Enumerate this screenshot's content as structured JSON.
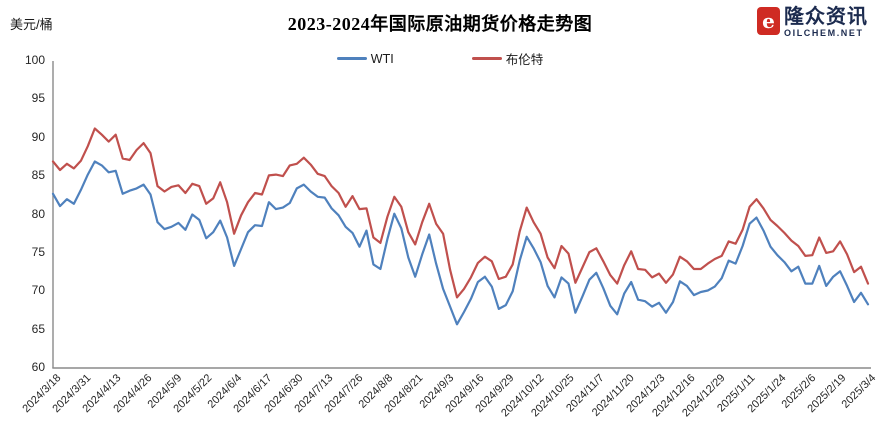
{
  "header": {
    "title": "2023-2024年国际原油期货价格走势图",
    "unit_label": "美元/桶"
  },
  "logo": {
    "brand": "隆众资讯",
    "domain": "OILCHEM.NET",
    "icon_text": "e",
    "icon_color": "#cf2b23",
    "text_color": "#1c2b4f"
  },
  "chart_data": {
    "type": "line",
    "title": "2023-2024年国际原油期货价格走势图",
    "xlabel": "",
    "ylabel": "美元/桶",
    "ylim": [
      60,
      100
    ],
    "y_ticks": [
      100,
      95,
      90,
      85,
      80,
      75,
      70,
      65,
      60
    ],
    "grid": false,
    "legend_position": "top-center",
    "axis_color": "#8a8a8a",
    "x_tick_labels": [
      "2024/3/18",
      "2024/3/31",
      "2024/4/13",
      "2024/4/26",
      "2024/5/9",
      "2024/5/22",
      "2024/6/4",
      "2024/6/17",
      "2024/6/30",
      "2024/7/13",
      "2024/7/26",
      "2024/8/8",
      "2024/8/21",
      "2024/9/3",
      "2024/9/16",
      "2024/9/29",
      "2024/10/12",
      "2024/10/25",
      "2024/11/7",
      "2024/11/20",
      "2024/12/3",
      "2024/12/16",
      "2024/12/29",
      "2025/1/11",
      "2025/1/24",
      "2025/2/6",
      "2025/2/19",
      "2025/3/4"
    ],
    "x_note": "values sampled every 3 days from 2024/3/18 to 2025/3/4",
    "series": [
      {
        "id": "wti",
        "name": "WTI",
        "color": "#4f81bd",
        "values": [
          82.7,
          81.1,
          82.0,
          81.4,
          83.2,
          85.2,
          86.9,
          86.4,
          85.5,
          85.7,
          82.7,
          83.1,
          83.4,
          83.9,
          82.6,
          79.0,
          78.1,
          78.4,
          78.9,
          78.0,
          80.0,
          79.3,
          76.9,
          77.7,
          79.2,
          77.0,
          73.3,
          75.5,
          77.7,
          78.6,
          78.5,
          81.6,
          80.7,
          80.9,
          81.5,
          83.4,
          83.9,
          83.0,
          82.3,
          82.2,
          80.8,
          79.9,
          78.4,
          77.6,
          75.8,
          77.9,
          73.5,
          72.9,
          76.8,
          80.1,
          78.2,
          74.4,
          71.9,
          74.8,
          77.4,
          73.6,
          70.3,
          68.0,
          65.7,
          67.3,
          69.0,
          71.2,
          71.9,
          70.6,
          67.7,
          68.2,
          70.0,
          74.0,
          77.1,
          75.6,
          73.8,
          70.7,
          69.2,
          71.8,
          71.0,
          67.2,
          69.3,
          71.5,
          72.4,
          70.4,
          68.1,
          67.0,
          69.7,
          71.2,
          68.9,
          68.7,
          68.0,
          68.5,
          67.2,
          68.6,
          71.3,
          70.7,
          69.5,
          69.9,
          70.1,
          70.6,
          71.7,
          74.0,
          73.6,
          75.9,
          78.8,
          79.6,
          77.9,
          75.8,
          74.7,
          73.8,
          72.6,
          73.2,
          71.0,
          71.0,
          73.3,
          70.7,
          71.9,
          72.6,
          70.7,
          68.6,
          69.8,
          68.3
        ]
      },
      {
        "id": "brent",
        "name": "布伦特",
        "color": "#c0504d",
        "values": [
          86.9,
          85.8,
          86.6,
          86.0,
          87.0,
          88.9,
          91.2,
          90.4,
          89.5,
          90.4,
          87.3,
          87.1,
          88.4,
          89.3,
          88.0,
          83.7,
          83.0,
          83.6,
          83.8,
          82.8,
          84.0,
          83.7,
          81.4,
          82.1,
          84.2,
          81.6,
          77.5,
          79.9,
          81.6,
          82.8,
          82.6,
          85.1,
          85.2,
          85.0,
          86.4,
          86.6,
          87.4,
          86.5,
          85.3,
          85.0,
          83.7,
          82.8,
          81.0,
          82.4,
          80.7,
          80.8,
          77.0,
          76.3,
          79.7,
          82.3,
          81.0,
          77.7,
          76.1,
          79.0,
          81.4,
          78.8,
          77.5,
          72.8,
          69.2,
          70.3,
          71.8,
          73.7,
          74.5,
          73.9,
          71.6,
          71.9,
          73.5,
          77.8,
          80.9,
          79.0,
          77.5,
          74.4,
          73.0,
          75.9,
          74.9,
          71.1,
          73.1,
          75.1,
          75.6,
          73.9,
          72.1,
          71.0,
          73.4,
          75.2,
          72.9,
          72.8,
          71.8,
          72.3,
          71.1,
          72.2,
          74.5,
          73.9,
          72.9,
          72.9,
          73.6,
          74.2,
          74.6,
          76.5,
          76.2,
          78.0,
          81.0,
          82.0,
          80.8,
          79.3,
          78.5,
          77.6,
          76.6,
          75.9,
          74.6,
          74.7,
          77.0,
          75.0,
          75.2,
          76.5,
          74.8,
          72.5,
          73.2,
          71.0
        ]
      }
    ]
  }
}
